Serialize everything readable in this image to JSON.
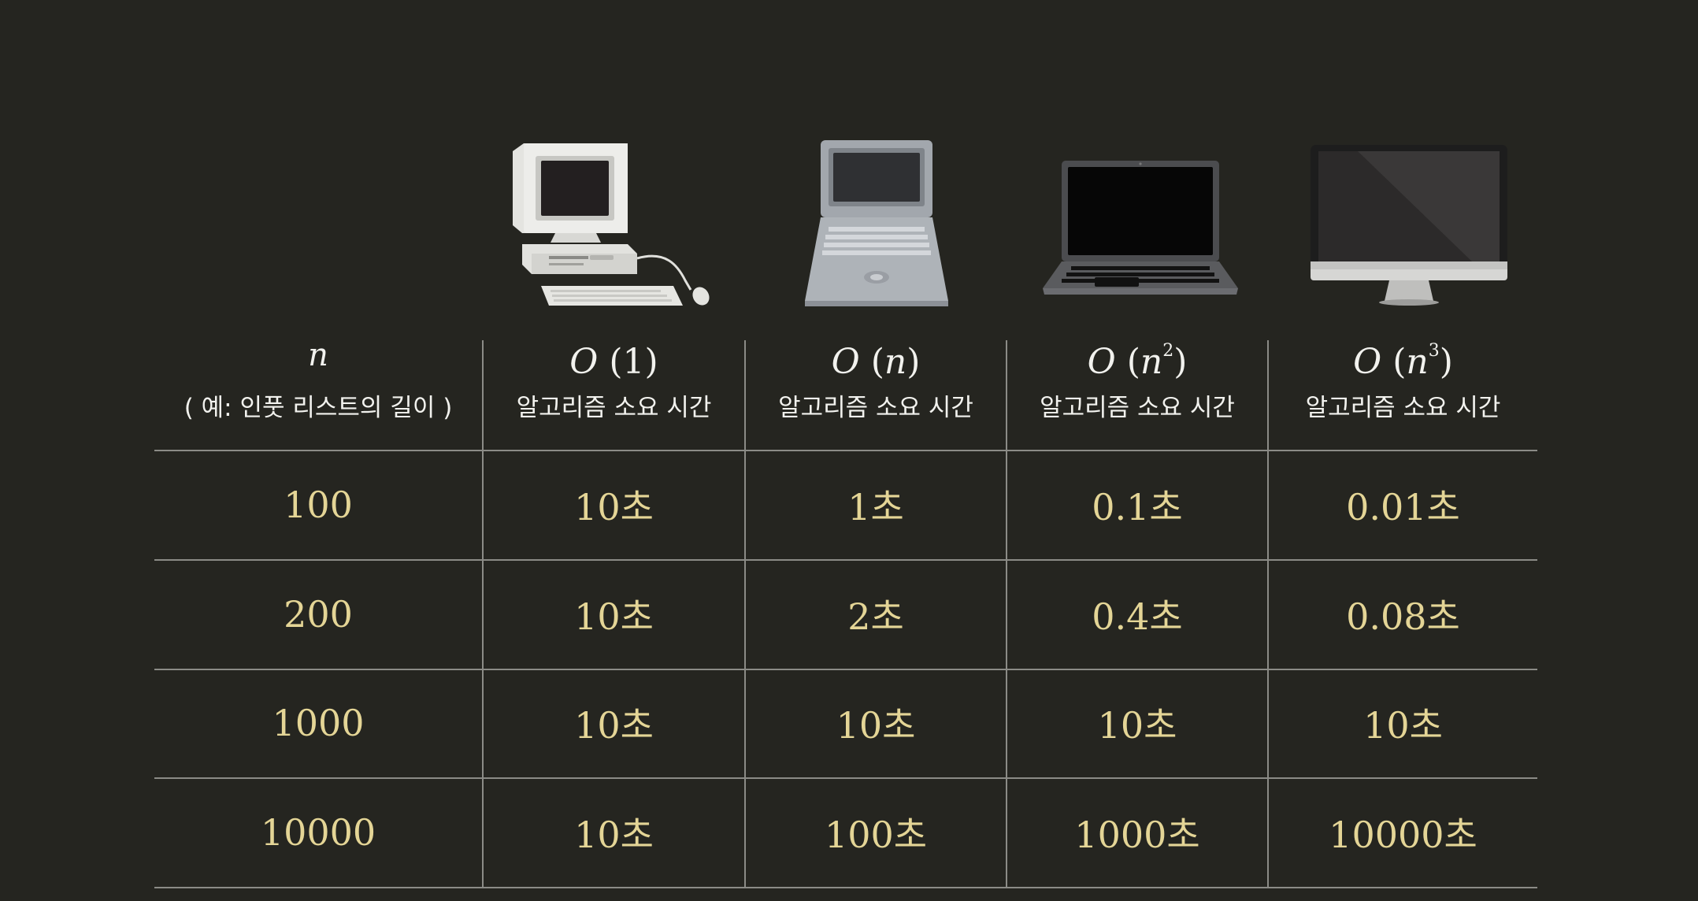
{
  "colors": {
    "background": "#252520",
    "value_text": "#e4d596",
    "header_text": "#f2f2ee",
    "grid_line": "#8b8b86"
  },
  "devices": [
    {
      "icon": "retro-desktop-computer-icon"
    },
    {
      "icon": "vintage-laptop-icon"
    },
    {
      "icon": "modern-laptop-icon"
    },
    {
      "icon": "imac-monitor-icon"
    }
  ],
  "table": {
    "n_header": {
      "symbol": "n",
      "subtitle": "( 예: 인풋 리스트의 길이 )"
    },
    "columns": [
      {
        "big_o": "O",
        "arg_open": "(",
        "arg": "1",
        "arg_close": ")",
        "exponent": "",
        "caption": "알고리즘 소요 시간"
      },
      {
        "big_o": "O",
        "arg_open": "(",
        "arg": "n",
        "arg_close": ")",
        "exponent": "",
        "caption": "알고리즘 소요 시간"
      },
      {
        "big_o": "O",
        "arg_open": "(",
        "arg": "n",
        "arg_close": ")",
        "exponent": "2",
        "caption": "알고리즘 소요 시간"
      },
      {
        "big_o": "O",
        "arg_open": "(",
        "arg": "n",
        "arg_close": ")",
        "exponent": "3",
        "caption": "알고리즘 소요 시간"
      }
    ],
    "rows": [
      {
        "n": "100",
        "values": [
          "10초",
          "1초",
          "0.1초",
          "0.01초"
        ]
      },
      {
        "n": "200",
        "values": [
          "10초",
          "2초",
          "0.4초",
          "0.08초"
        ]
      },
      {
        "n": "1000",
        "values": [
          "10초",
          "10초",
          "10초",
          "10초"
        ]
      },
      {
        "n": "10000",
        "values": [
          "10초",
          "100초",
          "1000초",
          "10000초"
        ]
      }
    ]
  }
}
